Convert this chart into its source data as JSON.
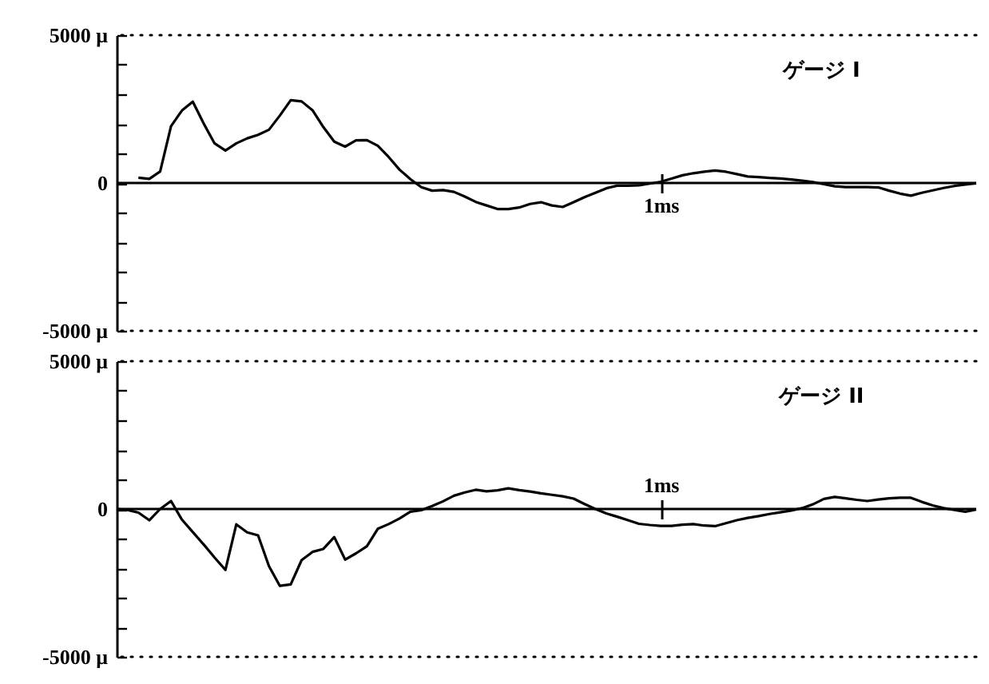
{
  "chart_data": [
    {
      "type": "line",
      "annotations": [
        "ゲージ I"
      ],
      "categories": [
        null,
        null,
        null,
        null,
        null,
        null,
        null,
        null,
        null,
        null,
        null,
        null,
        null,
        null,
        null,
        null,
        null,
        null,
        null,
        null,
        null,
        null,
        null,
        null,
        null,
        null,
        null,
        null,
        null,
        null,
        null,
        null,
        null,
        null,
        null,
        null,
        null,
        null,
        null,
        null,
        null,
        null,
        null,
        null,
        null,
        null,
        null,
        null,
        null,
        null,
        "1ms",
        null,
        null,
        null,
        null,
        null,
        null,
        null,
        null,
        null,
        null,
        null,
        null,
        null,
        null,
        null,
        null,
        null,
        null,
        null,
        null,
        null,
        null,
        null,
        null,
        null,
        null,
        null,
        null,
        null
      ],
      "series": [
        {
          "color": "#000000",
          "values": [
            null,
            null,
            180,
            140,
            390,
            1920,
            2450,
            2750,
            2010,
            1340,
            1100,
            1340,
            1510,
            1630,
            1800,
            2280,
            2800,
            2760,
            2460,
            1890,
            1400,
            1230,
            1440,
            1450,
            1260,
            880,
            450,
            130,
            -140,
            -260,
            -240,
            -300,
            -460,
            -640,
            -760,
            -880,
            -880,
            -830,
            -710,
            -650,
            -760,
            -810,
            -650,
            -480,
            -330,
            -180,
            -90,
            -90,
            -80,
            -20,
            40,
            150,
            260,
            330,
            380,
            420,
            380,
            300,
            220,
            200,
            170,
            150,
            120,
            80,
            30,
            -40,
            -110,
            -140,
            -140,
            -140,
            -150,
            -260,
            -360,
            -430,
            -330,
            -250,
            -170,
            -100,
            -50,
            -10
          ]
        }
      ],
      "ylim": [
        -5000,
        5000
      ],
      "yticks": [
        {
          "value": -5000,
          "label": "-5000 μ"
        },
        {
          "value": -4000,
          "label": null
        },
        {
          "value": -3000,
          "label": null
        },
        {
          "value": -2000,
          "label": null
        },
        {
          "value": -1000,
          "label": null
        },
        0,
        {
          "value": 1000,
          "label": null
        },
        {
          "value": 2000,
          "label": null
        },
        {
          "value": 3000,
          "label": null
        },
        {
          "value": 4000,
          "label": null
        },
        {
          "value": 5000,
          "label": "5000 μ"
        }
      ],
      "ref_lines": [
        {
          "axis": "y",
          "value": 0,
          "line_style": "solid"
        },
        {
          "axis": "y",
          "value": 5000,
          "line_style": "dotted"
        },
        {
          "axis": "y",
          "value": -5000,
          "line_style": "dotted"
        }
      ]
    },
    {
      "type": "line",
      "annotations": [
        "ゲージ II"
      ],
      "categories": [
        null,
        null,
        null,
        null,
        null,
        null,
        null,
        null,
        null,
        null,
        null,
        null,
        null,
        null,
        null,
        null,
        null,
        null,
        null,
        null,
        null,
        null,
        null,
        null,
        null,
        null,
        null,
        null,
        null,
        null,
        null,
        null,
        null,
        null,
        null,
        null,
        null,
        null,
        null,
        null,
        null,
        null,
        null,
        null,
        null,
        null,
        null,
        null,
        null,
        null,
        "1ms",
        null,
        null,
        null,
        null,
        null,
        null,
        null,
        null,
        null,
        null,
        null,
        null,
        null,
        null,
        null,
        null,
        null,
        null,
        null,
        null,
        null,
        null,
        null,
        null,
        null,
        null,
        null,
        null,
        null
      ],
      "series": [
        {
          "color": "#000000",
          "values": [
            0,
            -30,
            -120,
            -380,
            0,
            270,
            -360,
            -780,
            -1200,
            -1640,
            -2060,
            -520,
            -790,
            -890,
            -1930,
            -2600,
            -2550,
            -1730,
            -1450,
            -1350,
            -950,
            -1710,
            -1500,
            -1260,
            -670,
            -510,
            -320,
            -90,
            -40,
            100,
            260,
            450,
            560,
            650,
            600,
            630,
            700,
            640,
            590,
            530,
            480,
            430,
            350,
            170,
            0,
            -150,
            -260,
            -380,
            -500,
            -540,
            -570,
            -570,
            -530,
            -510,
            -560,
            -580,
            -480,
            -380,
            -300,
            -240,
            -170,
            -110,
            -50,
            30,
            160,
            340,
            410,
            360,
            310,
            270,
            320,
            360,
            380,
            380,
            240,
            120,
            30,
            -30,
            -90,
            -20
          ]
        }
      ],
      "ylim": [
        -5000,
        5000
      ],
      "yticks": [
        {
          "value": -5000,
          "label": "-5000 μ"
        },
        {
          "value": -4000,
          "label": null
        },
        {
          "value": -3000,
          "label": null
        },
        {
          "value": -2000,
          "label": null
        },
        {
          "value": -1000,
          "label": null
        },
        0,
        {
          "value": 1000,
          "label": null
        },
        {
          "value": 2000,
          "label": null
        },
        {
          "value": 3000,
          "label": null
        },
        {
          "value": 4000,
          "label": null
        },
        {
          "value": 5000,
          "label": "5000 μ"
        }
      ],
      "ref_lines": [
        {
          "axis": "y",
          "value": 0,
          "line_style": "solid"
        },
        {
          "axis": "y",
          "value": 5000,
          "line_style": "dotted"
        },
        {
          "axis": "y",
          "value": -5000,
          "line_style": "dotted"
        }
      ]
    }
  ]
}
